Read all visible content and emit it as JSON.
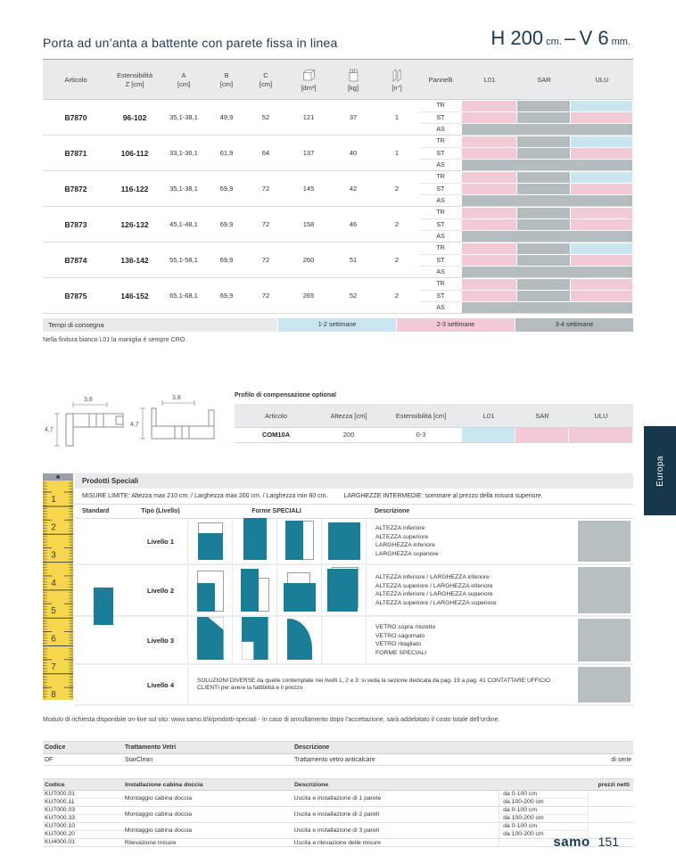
{
  "header": {
    "title": "Porta ad un’anta a battente con parete fissa in linea",
    "size_h": "H 200",
    "size_h_unit": "cm.",
    "size_dash": "–",
    "size_v": "V 6",
    "size_v_unit": "mm."
  },
  "main_table": {
    "headers": {
      "articolo": "Articolo",
      "estensibilita": "Estensibilità",
      "estensibilita_unit": "Z [cm]",
      "a": "A",
      "b": "B",
      "c": "C",
      "unit_cm": "[cm]",
      "dm3": "[dm³]",
      "kg": "[kg]",
      "n": "[n°]",
      "pannelli": "Pannelli",
      "l01": "L01",
      "sar": "SAR",
      "ulu": "ULU"
    },
    "rows": [
      {
        "articolo": "B7870",
        "estensibilita": "96-102",
        "a": "35,1-38,1",
        "b": "49,9",
        "c": "52",
        "dm3": "121",
        "kg": "37",
        "n": "1",
        "panels": [
          {
            "label": "TR",
            "colors": [
              "pink",
              "gray",
              "blue"
            ]
          },
          {
            "label": "ST",
            "colors": [
              "pink",
              "gray",
              "pink"
            ]
          },
          {
            "label": "AS",
            "colors": [
              "gray",
              "gray",
              "gray"
            ]
          }
        ]
      },
      {
        "articolo": "B7871",
        "estensibilita": "106-112",
        "a": "33,1-36,1",
        "b": "61,9",
        "c": "64",
        "dm3": "137",
        "kg": "40",
        "n": "1",
        "panels": [
          {
            "label": "TR",
            "colors": [
              "pink",
              "gray",
              "blue"
            ]
          },
          {
            "label": "ST",
            "colors": [
              "pink",
              "gray",
              "pink"
            ]
          },
          {
            "label": "AS",
            "colors": [
              "gray",
              "gray",
              "gray"
            ]
          }
        ]
      },
      {
        "articolo": "B7872",
        "estensibilita": "116-122",
        "a": "35,1-38,1",
        "b": "69,9",
        "c": "72",
        "dm3": "145",
        "kg": "42",
        "n": "2",
        "panels": [
          {
            "label": "TR",
            "colors": [
              "pink",
              "gray",
              "blue"
            ]
          },
          {
            "label": "ST",
            "colors": [
              "pink",
              "gray",
              "pink"
            ]
          },
          {
            "label": "AS",
            "colors": [
              "gray",
              "gray",
              "gray"
            ]
          }
        ]
      },
      {
        "articolo": "B7873",
        "estensibilita": "126-132",
        "a": "45,1-48,1",
        "b": "69,9",
        "c": "72",
        "dm3": "158",
        "kg": "46",
        "n": "2",
        "panels": [
          {
            "label": "TR",
            "colors": [
              "pink",
              "gray",
              "pink"
            ]
          },
          {
            "label": "ST",
            "colors": [
              "pink",
              "gray",
              "pink"
            ]
          },
          {
            "label": "AS",
            "colors": [
              "gray",
              "gray",
              "gray"
            ]
          }
        ]
      },
      {
        "articolo": "B7874",
        "estensibilita": "136-142",
        "a": "55,1-58,1",
        "b": "69,9",
        "c": "72",
        "dm3": "260",
        "kg": "51",
        "n": "2",
        "panels": [
          {
            "label": "TR",
            "colors": [
              "pink",
              "gray",
              "blue"
            ]
          },
          {
            "label": "ST",
            "colors": [
              "pink",
              "gray",
              "pink"
            ]
          },
          {
            "label": "AS",
            "colors": [
              "gray",
              "gray",
              "gray"
            ]
          }
        ]
      },
      {
        "articolo": "B7875",
        "estensibilita": "146-152",
        "a": "65,1-68,1",
        "b": "69,9",
        "c": "72",
        "dm3": "265",
        "kg": "52",
        "n": "2",
        "panels": [
          {
            "label": "TR",
            "colors": [
              "pink",
              "gray",
              "pink"
            ]
          },
          {
            "label": "ST",
            "colors": [
              "pink",
              "gray",
              "pink"
            ]
          },
          {
            "label": "AS",
            "colors": [
              "gray",
              "gray",
              "gray"
            ]
          }
        ]
      }
    ],
    "delivery": {
      "label": "Tempi di consegna",
      "legend": [
        {
          "label": "1-2 settimane",
          "color": "blue"
        },
        {
          "label": "2-3 settimane",
          "color": "pink"
        },
        {
          "label": "3-4 settimane",
          "color": "gray"
        }
      ]
    },
    "note": "Nella finitura bianco L01 la maniglia è sempre CRO."
  },
  "drawings": {
    "w": "3,8",
    "h": "4,7"
  },
  "comp": {
    "title": "Profilo di compensazione optional",
    "headers": {
      "articolo": "Articolo",
      "altezza": "Altezza [cm]",
      "estensibilita": "Estensibilità [cm]",
      "l01": "L01",
      "sar": "SAR",
      "ulu": "ULU"
    },
    "row": {
      "articolo": "COM10A",
      "altezza": "200",
      "estensibilita": "0-3",
      "colors": [
        "blue",
        "pink",
        "pink"
      ]
    }
  },
  "europa": {
    "label": "Europa"
  },
  "speciali": {
    "title": "Prodotti Speciali",
    "limits": "MISURE LIMITE: Altezza max 210 cm. / Larghezza max 200 cm. / Larghezza min 80 cm.",
    "intermediate": "LARGHEZZE INTERMEDIE: sommare al prezzo della misura superiore.",
    "headers": {
      "standard": "Standard",
      "tipo": "Tipo (Livello)",
      "forme": "Forme SPECIALI",
      "descrizione": "Descrizione"
    },
    "ruler_numbers": [
      "1",
      "2",
      "3",
      "4",
      "5",
      "6",
      "7",
      "8"
    ],
    "levels": [
      {
        "label": "Livello 1",
        "shapes": [
          "height-lower",
          "height-upper",
          "width-lower",
          "width-upper"
        ],
        "desc": [
          "ALTEZZA inferiore",
          "ALTEZZA superiore",
          "LARGHEZZA inferiore",
          "LARGHEZZA superiore"
        ]
      },
      {
        "label": "Livello 2",
        "shapes": [
          "hl-wl",
          "hu-wl",
          "hl-wu",
          "hu-wu"
        ],
        "desc": [
          "ALTEZZA inferiore / LARGHEZZA inferiore",
          "ALTEZZA superiore / LARGHEZZA inferiore",
          "ALTEZZA inferiore / LARGHEZZA superiore",
          "ALTEZZA superiore / LARGHEZZA superiore"
        ]
      },
      {
        "label": "Livello 3",
        "shapes": [
          "diagonal-cut",
          "notched",
          "rounded-top"
        ],
        "desc": [
          "VETRO sopra muretto",
          "VETRO sagomato",
          "VETRO ritagliato",
          "FORME SPECIALI"
        ]
      },
      {
        "label": "Livello 4",
        "shapes": [],
        "desc": [
          "SOLUZIONI DIVERSE da quelle contemplate nei livelli 1, 2 e 3: si veda la sezione dedicata da pag. 19 a pag. 41 CONTATTARE UFFICIO CLIENTI per avere la fattibilità e il prezzo"
        ]
      }
    ],
    "footnote": "Modulo di richiesta disponibile on-line sul sito: www.samo.it/it/prodotti-speciali - In caso di annullamento dopo l’accettazione, sarà addebitato il costo totale dell’ordine."
  },
  "glass": {
    "headers": {
      "codice": "Codice",
      "trattamento": "Trattamento Vetri",
      "descrizione": "Descrizione"
    },
    "rows": [
      {
        "codice": "DF",
        "trattamento": "StarClean",
        "descrizione": "Trattamento vetro anticalcare",
        "nota": "di serie"
      }
    ]
  },
  "install": {
    "headers": {
      "codice": "Codice",
      "install": "Installazione cabina doccia",
      "descrizione": "Descrizione",
      "prezzi": "prezzi netti"
    },
    "groups": [
      {
        "codes": [
          "KU7000.01",
          "KU7000.11"
        ],
        "install": "Montaggio cabina doccia",
        "desc": "Uscita e installazione di 1 parete",
        "ranges": [
          "da 0-100 cm",
          "da 100-200 cm"
        ]
      },
      {
        "codes": [
          "KU7000.03",
          "KU7000.33"
        ],
        "install": "Montaggio cabina doccia",
        "desc": "Uscita e installazione di 2 pareti",
        "ranges": [
          "da 0-100 cm",
          "da 100-200 cm"
        ]
      },
      {
        "codes": [
          "KU7000.10",
          "KU7000.20"
        ],
        "install": "Montaggio cabina doccia",
        "desc": "Uscita e installazione di 3 pareti",
        "ranges": [
          "da 0-100 cm",
          "da 100-200 cm"
        ]
      },
      {
        "codes": [
          "KU4000.01"
        ],
        "install": "Rilevazione misure",
        "desc": "Uscita e rilevazione delle misure",
        "ranges": [
          ""
        ]
      }
    ]
  },
  "footer": {
    "brand": "samo",
    "page": "151"
  },
  "colors": {
    "pink": "#f2cad5",
    "gray": "#b5bcbf",
    "blue": "#c9e5ef",
    "teal": "#1b7e99",
    "navy": "#16374c",
    "header_bg": "#e9eaeb"
  }
}
